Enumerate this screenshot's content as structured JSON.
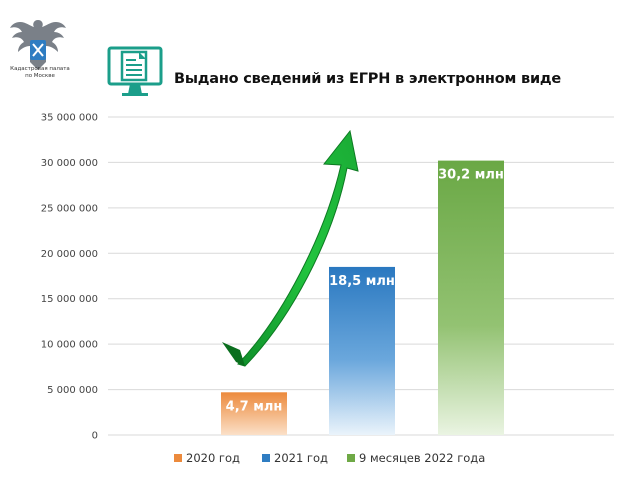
{
  "header": {
    "org_name": "Кадастровая палата\nпо Москве",
    "title": "Выдано сведений из ЕГРН в электронном виде",
    "logo_icon": "eagle-emblem-icon",
    "title_icon": "monitor-document-icon",
    "arrow_icon": "growth-arrow-icon"
  },
  "colors": {
    "2020": "#ec8a3c",
    "2021": "#2f7dc2",
    "2022": "#6fa946",
    "arrow": "#1fbf3a",
    "icon": "#1b9e8a"
  },
  "chart_data": {
    "type": "bar",
    "title": "Выдано сведений из ЕГРН в электронном виде",
    "categories": [
      "2020 год",
      "2021 год",
      "9 месяцев 2022 года"
    ],
    "values": [
      4700000,
      18500000,
      30200000
    ],
    "data_labels": [
      "4,7 млн",
      "18,5 млн",
      "30,2 млн"
    ],
    "ylim": [
      0,
      35000000
    ],
    "y_ticks": [
      0,
      5000000,
      10000000,
      15000000,
      20000000,
      25000000,
      30000000,
      35000000
    ],
    "y_tick_labels": [
      "0",
      "5 000 000",
      "10 000 000",
      "15 000 000",
      "20 000 000",
      "25 000 000",
      "30 000 000",
      "35 000 000"
    ],
    "grid": true,
    "legend": "bottom"
  }
}
